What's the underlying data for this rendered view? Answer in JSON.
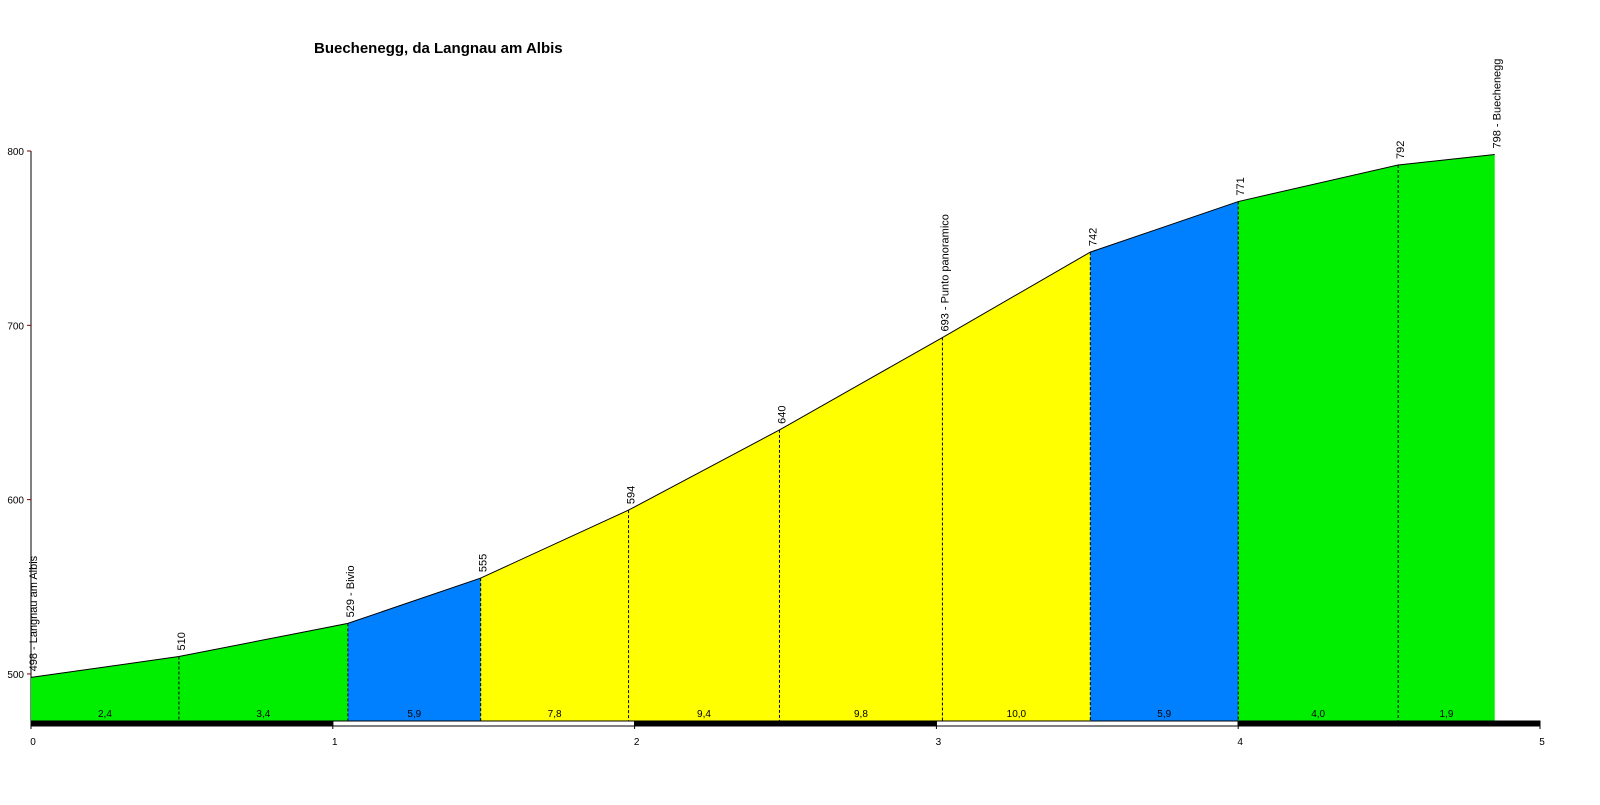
{
  "chart_data": {
    "type": "area",
    "title": "Buechenegg, da Langnau am Albis",
    "x": [
      0,
      0.49,
      1.05,
      1.49,
      1.98,
      2.48,
      3.02,
      3.51,
      4.0,
      4.53,
      4.85
    ],
    "values": [
      498,
      510,
      529,
      555,
      594,
      640,
      693,
      742,
      771,
      792,
      798
    ],
    "point_labels": [
      "498 - Langnau am Albis",
      "510",
      "529 - Bivio",
      "555",
      "594",
      "640",
      "693 - Punto panoramico",
      "742",
      "771",
      "792",
      "798 - Buechenegg"
    ],
    "segments": {
      "values": [
        2.4,
        3.4,
        5.9,
        7.8,
        9.4,
        9.8,
        10.0,
        5.9,
        4.0,
        1.9
      ],
      "value_labels": [
        "2,4",
        "3,4",
        "5,9",
        "7,8",
        "9,4",
        "9,8",
        "10,0",
        "5,9",
        "4,0",
        "1,9"
      ],
      "colors": [
        "#00ee00",
        "#00ee00",
        "#0080ff",
        "#ffff00",
        "#ffff00",
        "#ffff00",
        "#ffff00",
        "#0080ff",
        "#00ee00",
        "#00ee00"
      ]
    },
    "xlim": [
      0,
      5
    ],
    "xticks": [
      0,
      1,
      2,
      3,
      4,
      5
    ],
    "ylim": [
      473,
      800
    ],
    "yticks": [
      500,
      600,
      700,
      800
    ]
  }
}
